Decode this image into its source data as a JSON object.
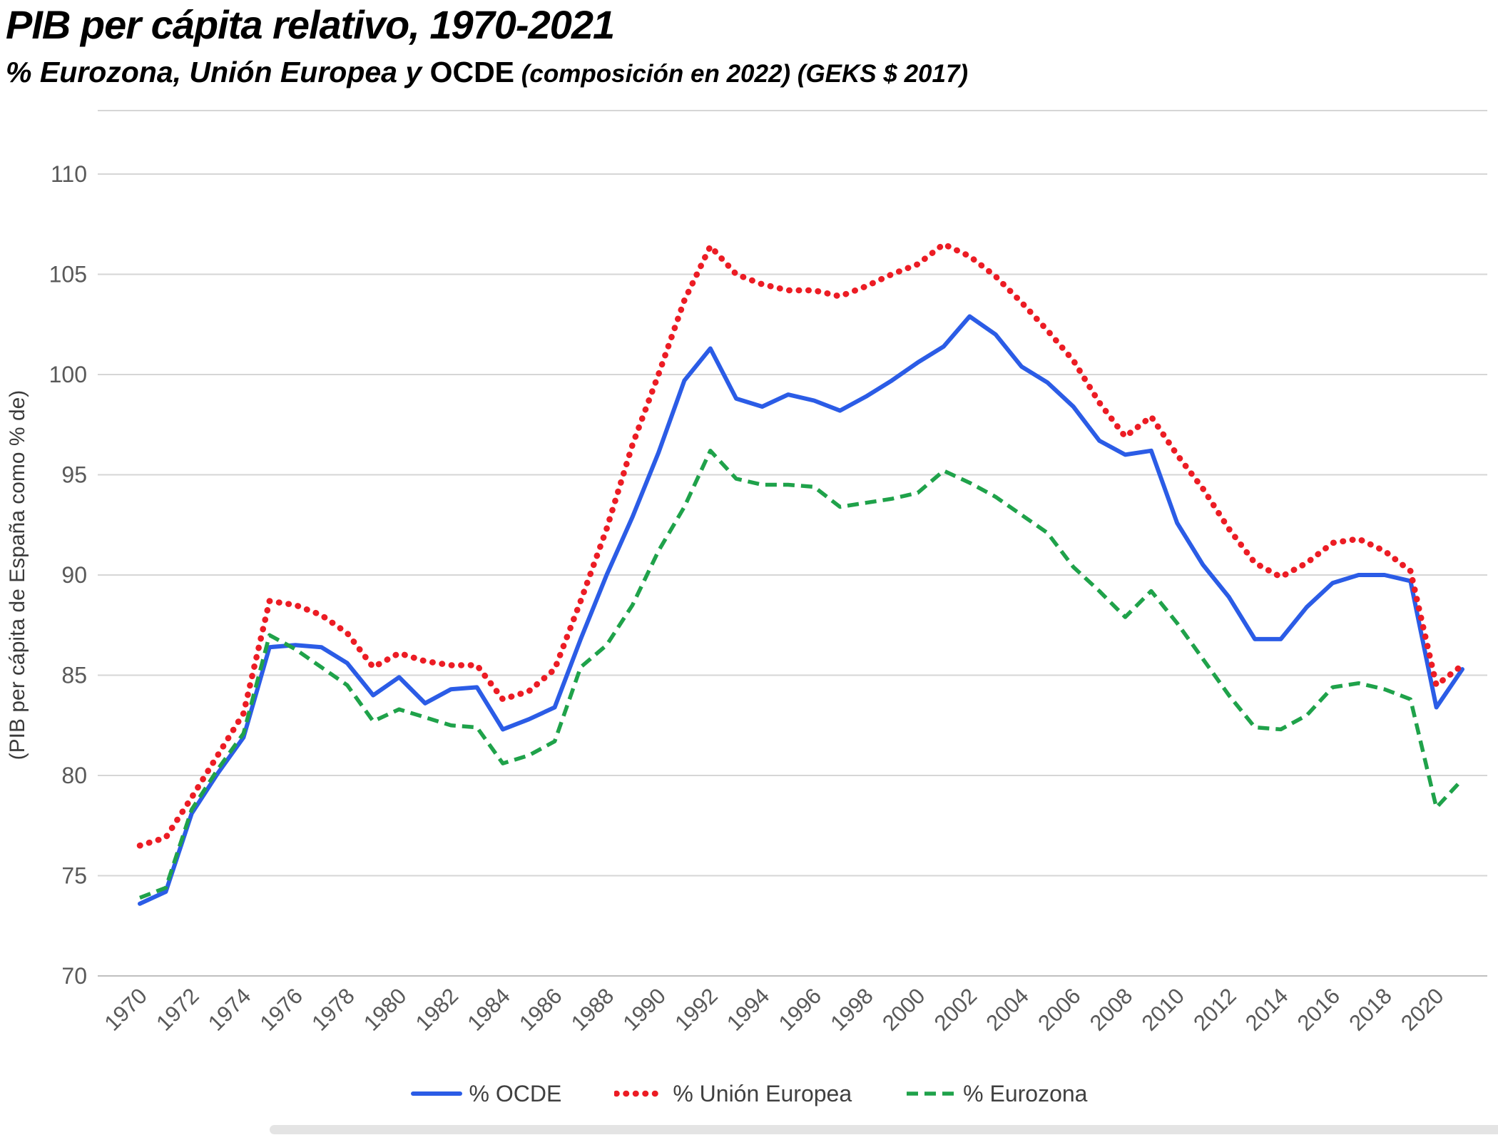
{
  "header": {
    "title": "PIB per cápita relativo, 1970-2021",
    "subtitle_main": "% Eurozona, Unión Europea y ",
    "subtitle_ocde": "OCDE",
    "subtitle_note": " (composición en 2022) (GEKS $ 2017)"
  },
  "chart_data": {
    "type": "line",
    "title": "PIB per cápita relativo, 1970-2021",
    "xlabel": "",
    "ylabel": "(PIB per cápita de España como % de)",
    "ylim": [
      70,
      110
    ],
    "ytick_step": 5,
    "x_range": [
      1970,
      2021
    ],
    "xtick_first": 1970,
    "xtick_last": 2020,
    "xtick_step": 2,
    "grid": "horizontal",
    "legend_position": "bottom",
    "axis_text_color": "#595959",
    "gridline_color": "#d6d6d6",
    "axis_line_color": "#bfbfbf",
    "years": [
      1970,
      1971,
      1972,
      1973,
      1974,
      1975,
      1976,
      1977,
      1978,
      1979,
      1980,
      1981,
      1982,
      1983,
      1984,
      1985,
      1986,
      1987,
      1988,
      1989,
      1990,
      1991,
      1992,
      1993,
      1994,
      1995,
      1996,
      1997,
      1998,
      1999,
      2000,
      2001,
      2002,
      2003,
      2004,
      2005,
      2006,
      2007,
      2008,
      2009,
      2010,
      2011,
      2012,
      2013,
      2014,
      2015,
      2016,
      2017,
      2018,
      2019,
      2020,
      2021
    ],
    "series": [
      {
        "name": "% OCDE",
        "color": "#2b5ce6",
        "style": "solid",
        "values": [
          73.6,
          74.2,
          78.1,
          80.1,
          81.9,
          86.4,
          86.5,
          86.4,
          85.6,
          84.0,
          84.9,
          83.6,
          84.3,
          84.4,
          82.3,
          82.8,
          83.4,
          86.8,
          90.0,
          92.9,
          96.1,
          99.7,
          101.3,
          98.8,
          98.4,
          99.0,
          98.7,
          98.2,
          98.9,
          99.7,
          100.6,
          101.4,
          102.9,
          102.0,
          100.4,
          99.6,
          98.4,
          96.7,
          96.0,
          96.2,
          92.6,
          90.5,
          88.9,
          86.8,
          86.8,
          88.4,
          89.6,
          90.0,
          90.0,
          89.7,
          83.4,
          85.3
        ]
      },
      {
        "name": "% Unión Europea",
        "color": "#ec1c24",
        "style": "dotted",
        "values": [
          76.5,
          76.9,
          78.9,
          81.0,
          83.1,
          88.7,
          88.5,
          88.0,
          87.1,
          85.4,
          86.1,
          85.7,
          85.5,
          85.5,
          83.8,
          84.2,
          85.3,
          88.7,
          92.3,
          96.5,
          100.0,
          103.7,
          106.4,
          105.0,
          104.5,
          104.2,
          104.2,
          103.9,
          104.4,
          105.0,
          105.5,
          106.5,
          105.9,
          104.9,
          103.6,
          102.2,
          100.7,
          98.6,
          96.9,
          97.9,
          96.0,
          94.3,
          92.3,
          90.6,
          89.9,
          90.6,
          91.6,
          91.8,
          91.2,
          90.2,
          84.5,
          85.5
        ]
      },
      {
        "name": "% Eurozona",
        "color": "#1fa24a",
        "style": "dashed",
        "values": [
          73.9,
          74.4,
          78.3,
          80.3,
          82.1,
          87.0,
          86.3,
          85.4,
          84.5,
          82.7,
          83.3,
          82.9,
          82.5,
          82.4,
          80.6,
          81.0,
          81.7,
          85.4,
          86.5,
          88.5,
          91.2,
          93.4,
          96.2,
          94.8,
          94.5,
          94.5,
          94.4,
          93.4,
          93.6,
          93.8,
          94.1,
          95.2,
          94.6,
          93.9,
          93.0,
          92.1,
          90.4,
          89.2,
          87.9,
          89.2,
          87.6,
          85.8,
          84.0,
          82.4,
          82.3,
          83.0,
          84.4,
          84.6,
          84.3,
          83.8,
          78.4,
          79.8
        ]
      }
    ]
  }
}
